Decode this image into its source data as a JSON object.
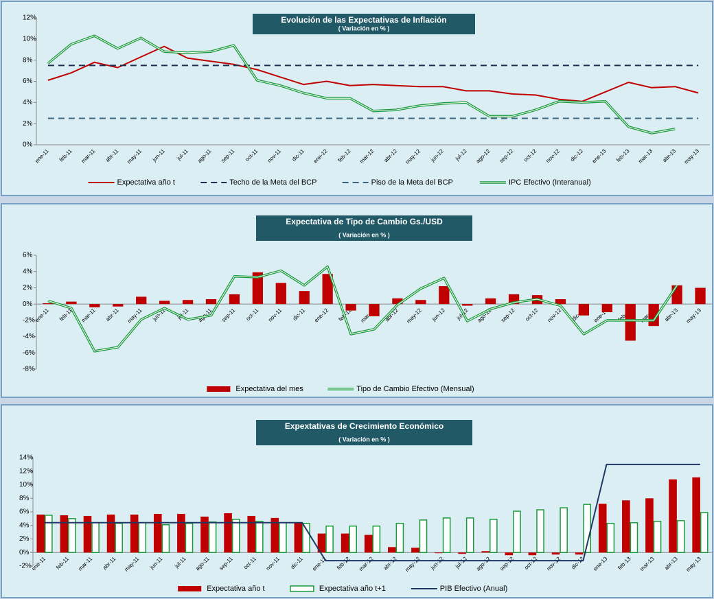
{
  "chart_data": [
    {
      "type": "line",
      "title": "Evolución de las Expectativas de Inflación",
      "subtitle": "( Variación en % )",
      "categories": [
        "ene-11",
        "feb-11",
        "mar-11",
        "abr-11",
        "may-11",
        "jun-11",
        "jul-11",
        "ago-11",
        "sep-11",
        "oct-11",
        "nov-11",
        "dic-11",
        "ene-12",
        "feb-12",
        "mar-12",
        "abr-12",
        "may-12",
        "jun-12",
        "jul-12",
        "ago-12",
        "sep-12",
        "oct-12",
        "nov-12",
        "dic-12",
        "ene-13",
        "feb-13",
        "mar-13",
        "abr-13",
        "may-13"
      ],
      "ylim": [
        0,
        12
      ],
      "yticks": [
        {
          "value": 0,
          "label": "0%"
        },
        {
          "value": 2,
          "label": "2%"
        },
        {
          "value": 4,
          "label": "4%"
        },
        {
          "value": 6,
          "label": "6%"
        },
        {
          "value": 8,
          "label": "8%"
        },
        {
          "value": 10,
          "label": "10%"
        },
        {
          "value": 12,
          "label": "12%"
        }
      ],
      "grid": false,
      "series": [
        {
          "name": "Expectativa año t",
          "type": "line",
          "style": "solid",
          "color": "#c00000",
          "values": [
            6.1,
            6.8,
            7.8,
            7.3,
            8.3,
            9.3,
            8.2,
            7.9,
            7.6,
            7.1,
            6.4,
            5.7,
            6.0,
            5.6,
            5.7,
            5.6,
            5.5,
            5.5,
            5.1,
            5.1,
            4.8,
            4.7,
            4.3,
            4.1,
            5.0,
            5.9,
            5.4,
            5.5,
            4.9
          ]
        },
        {
          "name": "Techo de la Meta del BCP",
          "type": "line",
          "style": "dashed",
          "color": "#1f2d4e",
          "values": [
            7.5,
            7.5,
            7.5,
            7.5,
            7.5,
            7.5,
            7.5,
            7.5,
            7.5,
            7.5,
            7.5,
            7.5,
            7.5,
            7.5,
            7.5,
            7.5,
            7.5,
            7.5,
            7.5,
            7.5,
            7.5,
            7.5,
            7.5,
            7.5,
            7.5,
            7.5,
            7.5,
            7.5,
            7.5
          ]
        },
        {
          "name": "Piso de la Meta del BCP",
          "type": "line",
          "style": "dashed",
          "color": "#3b6682",
          "values": [
            2.5,
            2.5,
            2.5,
            2.5,
            2.5,
            2.5,
            2.5,
            2.5,
            2.5,
            2.5,
            2.5,
            2.5,
            2.5,
            2.5,
            2.5,
            2.5,
            2.5,
            2.5,
            2.5,
            2.5,
            2.5,
            2.5,
            2.5,
            2.5,
            2.5,
            2.5,
            2.5,
            2.5,
            2.5
          ]
        },
        {
          "name": "IPC Efectivo (Interanual)",
          "type": "line",
          "style": "double",
          "color": "#1a9a3a",
          "values": [
            7.7,
            9.5,
            10.3,
            9.1,
            10.1,
            8.8,
            8.7,
            8.8,
            9.4,
            6.1,
            5.6,
            4.9,
            4.4,
            4.4,
            3.2,
            3.3,
            3.7,
            3.9,
            4.0,
            2.7,
            2.7,
            3.3,
            4.1,
            4.0,
            4.1,
            1.7,
            1.1,
            1.5,
            null
          ]
        }
      ]
    },
    {
      "type": "bar",
      "title": "Expectativa de Tipo de Cambio Gs./USD",
      "subtitle": "( Variación en % )",
      "categories": [
        "ene-11",
        "feb-11",
        "mar-11",
        "abr-11",
        "may-11",
        "jun-11",
        "jul-11",
        "ago-11",
        "sep-11",
        "oct-11",
        "nov-11",
        "dic-11",
        "ene-12",
        "feb-12",
        "mar-12",
        "abr-12",
        "may-12",
        "jun-12",
        "jul-12",
        "ago-12",
        "sep-12",
        "oct-12",
        "nov-12",
        "dic-12",
        "ene-13",
        "feb-13",
        "mar-13",
        "abr-13",
        "may-13"
      ],
      "ylim": [
        -8,
        6
      ],
      "yticks": [
        {
          "value": -8,
          "label": "-8%"
        },
        {
          "value": -6,
          "label": "-6%"
        },
        {
          "value": -4,
          "label": "-4%"
        },
        {
          "value": -2,
          "label": "-2%"
        },
        {
          "value": 0,
          "label": "0%"
        },
        {
          "value": 2,
          "label": "2%"
        },
        {
          "value": 4,
          "label": "4%"
        },
        {
          "value": 6,
          "label": "6%"
        }
      ],
      "grid": false,
      "series": [
        {
          "name": "Expectativa del mes",
          "type": "bar",
          "style": "solid",
          "color": "#c00000",
          "values": [
            0.1,
            0.3,
            -0.4,
            -0.3,
            0.9,
            0.4,
            0.5,
            0.6,
            1.2,
            3.9,
            2.6,
            1.6,
            3.7,
            -0.8,
            -1.5,
            0.7,
            0.5,
            2.2,
            -0.2,
            0.7,
            1.2,
            1.1,
            0.6,
            -1.4,
            -1.0,
            -4.5,
            -2.7,
            2.3,
            2.0
          ]
        },
        {
          "name": "Tipo de Cambio Efectivo (Mensual)",
          "type": "line",
          "style": "double",
          "color": "#1a9a3a",
          "values": [
            0.4,
            -0.5,
            -5.8,
            -5.3,
            -1.9,
            -0.5,
            -1.9,
            -1.4,
            3.4,
            3.3,
            4.1,
            2.3,
            4.6,
            -3.7,
            -3.1,
            -0.1,
            1.9,
            3.2,
            -2.1,
            -0.6,
            0.2,
            0.6,
            -0.2,
            -3.7,
            -2.0,
            -2.0,
            -2.0,
            2.3,
            null
          ]
        }
      ]
    },
    {
      "type": "bar",
      "title": "Expextativas de Crecimiento Económico",
      "subtitle": "( Variación en % )",
      "categories": [
        "ene-11",
        "feb-11",
        "mar-11",
        "abr-11",
        "may-11",
        "jun-11",
        "jul-11",
        "ago-11",
        "sep-11",
        "oct-11",
        "nov-11",
        "dic-11",
        "ene-12",
        "feb-12",
        "mar-12",
        "abr-12",
        "may-12",
        "jun-12",
        "jul-12",
        "ago-12",
        "sep-12",
        "oct-12",
        "nov-12",
        "dic-12",
        "ene-13",
        "feb-13",
        "mar-13",
        "abr-13",
        "may-13"
      ],
      "ylim": [
        -2,
        14
      ],
      "yticks": [
        {
          "value": -2,
          "label": "-2%"
        },
        {
          "value": 0,
          "label": "0%"
        },
        {
          "value": 2,
          "label": "2%"
        },
        {
          "value": 4,
          "label": "4%"
        },
        {
          "value": 6,
          "label": "6%"
        },
        {
          "value": 8,
          "label": "8%"
        },
        {
          "value": 10,
          "label": "10%"
        },
        {
          "value": 12,
          "label": "12%"
        },
        {
          "value": 14,
          "label": "14%"
        }
      ],
      "grid": false,
      "series": [
        {
          "name": "Expectativa año t",
          "type": "bar",
          "style": "solid",
          "color": "#c00000",
          "values": [
            5.6,
            5.5,
            5.4,
            5.6,
            5.6,
            5.7,
            5.7,
            5.3,
            5.8,
            5.4,
            5.1,
            4.4,
            2.8,
            2.8,
            2.6,
            0.8,
            0.7,
            -0.1,
            -0.2,
            0.2,
            -0.4,
            -0.4,
            -0.3,
            -0.3,
            7.2,
            7.7,
            8.0,
            10.8,
            11.1
          ]
        },
        {
          "name": "Expectativa año t+1",
          "type": "bar",
          "style": "outline",
          "color": "#1a9a3a",
          "values": [
            5.5,
            5.0,
            4.4,
            4.3,
            4.4,
            4.1,
            4.3,
            4.5,
            4.9,
            4.6,
            4.4,
            4.3,
            3.9,
            3.9,
            3.9,
            4.3,
            4.8,
            5.1,
            5.1,
            4.9,
            6.1,
            6.3,
            6.6,
            7.1,
            4.3,
            4.4,
            4.6,
            4.7,
            5.9
          ]
        },
        {
          "name": "PIB Efectivo (Anual)",
          "type": "line",
          "style": "solid",
          "color": "#1f3864",
          "values": [
            4.4,
            4.4,
            4.4,
            4.4,
            4.4,
            4.4,
            4.4,
            4.4,
            4.4,
            4.4,
            4.4,
            4.4,
            -1.2,
            -1.2,
            -1.2,
            -1.2,
            -1.2,
            -1.2,
            -1.2,
            -1.2,
            -1.2,
            -1.2,
            -1.2,
            -1.2,
            13.0,
            13.0,
            13.0,
            13.0,
            13.0
          ]
        }
      ]
    }
  ]
}
